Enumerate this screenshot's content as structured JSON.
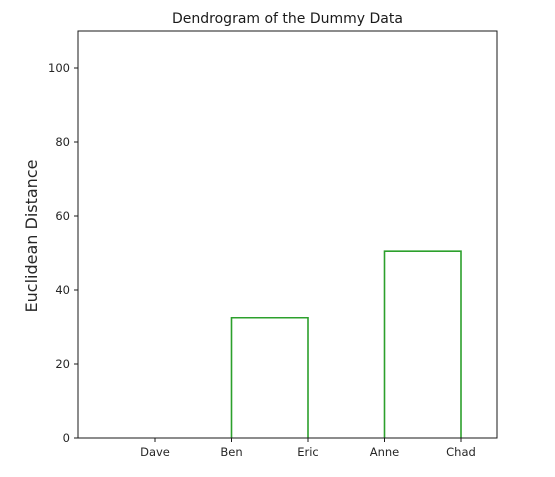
{
  "chart_data": {
    "type": "dendrogram",
    "title": "Dendrogram of the Dummy Data",
    "ylabel": "Euclidean Distance",
    "xlabel": "",
    "leaves": [
      "Dave",
      "Ben",
      "Eric",
      "Anne",
      "Chad"
    ],
    "ylim": [
      0,
      110
    ],
    "yticks": [
      0,
      20,
      40,
      60,
      80,
      100
    ],
    "grid": false,
    "links": [
      {
        "left": "Ben",
        "right": "Eric",
        "height": 32.5,
        "color": "#2ca02c"
      },
      {
        "left": "Anne",
        "right": "Chad",
        "height": 50.5,
        "color": "#2ca02c"
      }
    ]
  }
}
